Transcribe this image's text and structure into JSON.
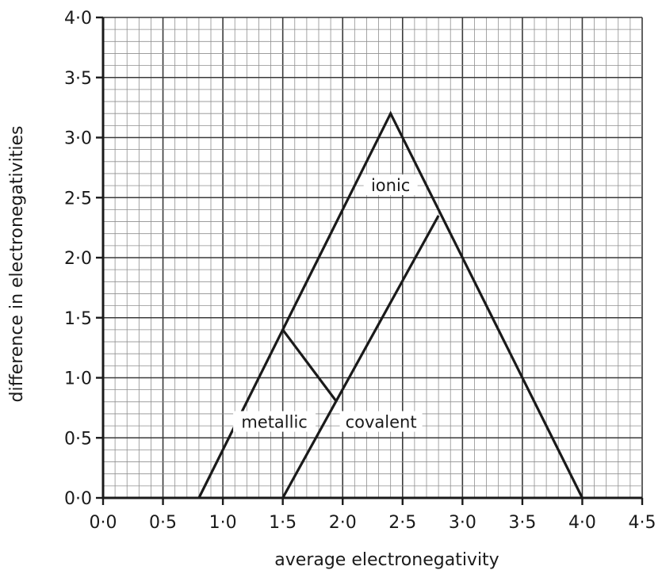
{
  "chart_data": {
    "type": "line",
    "title": "",
    "xlabel": "average electronegativity",
    "ylabel": "difference in electronegativities",
    "xlim": [
      0,
      4.5
    ],
    "ylim": [
      0,
      4
    ],
    "grid": "fine graph-paper grid (0.1 minor, 0.5 major)",
    "x_tick_labels": [
      "0·0",
      "0·5",
      "1·0",
      "1·5",
      "2·0",
      "2·5",
      "3·0",
      "3·5",
      "4·0",
      "4·5"
    ],
    "y_tick_labels": [
      "0·0",
      "0·5",
      "1·0",
      "1·5",
      "2·0",
      "2·5",
      "3·0",
      "3·5",
      "4·0"
    ],
    "series": [
      {
        "x": [
          0.8,
          2.4,
          4.0
        ],
        "y": [
          0.0,
          3.2,
          0.0
        ]
      },
      {
        "x": [
          1.5,
          2.8
        ],
        "y": [
          0.0,
          2.35
        ]
      },
      {
        "x": [
          1.5,
          1.95
        ],
        "y": [
          1.4,
          0.8
        ]
      }
    ],
    "annotations": [
      {
        "text": "ionic",
        "x": 2.4,
        "y": 2.6
      },
      {
        "text": "metallic",
        "x": 1.43,
        "y": 0.63
      },
      {
        "text": "covalent",
        "x": 2.32,
        "y": 0.63
      }
    ],
    "colors": {
      "line": "#1a1a1a",
      "minor_grid": "#8f8f8f",
      "major_grid": "#3a3a3a",
      "label_bg": "#ffffff"
    }
  }
}
